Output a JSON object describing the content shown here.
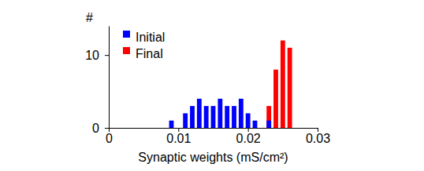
{
  "chart_data": {
    "type": "histogram",
    "x_label": "Synaptic weights (mS/cm²)",
    "y_label": "#",
    "bins": [
      0.0085,
      0.0095,
      0.0105,
      0.0115,
      0.0125,
      0.0135,
      0.0145,
      0.0155,
      0.0165,
      0.0175,
      0.0185,
      0.0195,
      0.0205,
      0.0215,
      0.0225,
      0.0235,
      0.0245,
      0.0255,
      0.0265
    ],
    "series": [
      {
        "name": "Initial",
        "color": "#0000ff",
        "values": [
          1,
          0,
          2,
          3,
          4,
          3,
          3,
          4,
          3,
          3,
          4,
          2,
          1,
          0,
          1,
          0,
          0,
          0
        ]
      },
      {
        "name": "Final",
        "color": "#ff0000",
        "values": [
          0,
          0,
          0,
          0,
          0,
          0,
          0,
          0,
          0,
          0,
          0,
          0,
          0,
          0,
          3,
          8,
          12,
          11
        ]
      }
    ],
    "xlim": [
      0,
      0.03
    ],
    "xticks": [
      0,
      0.01,
      0.02,
      0.03
    ],
    "ylim": [
      0,
      14
    ],
    "yticks": [
      0,
      10
    ],
    "legend": "upper left"
  }
}
